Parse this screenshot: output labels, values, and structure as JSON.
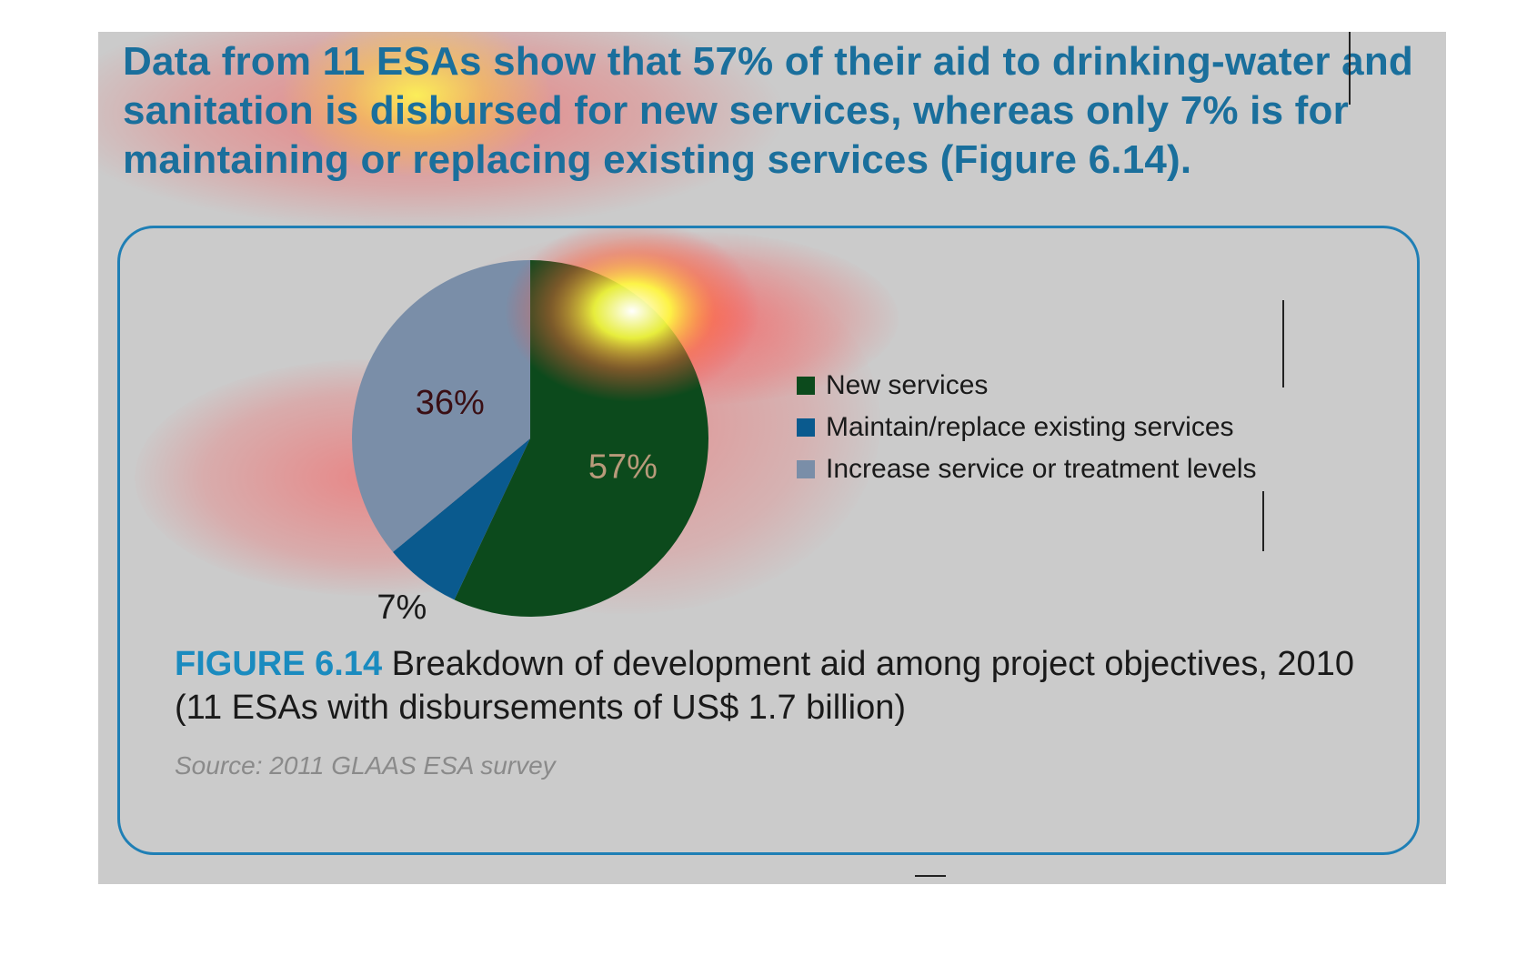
{
  "headline": "Data from 11 ESAs show that 57% of their aid to drinking-water and sanitation is disbursed for new services, whereas only 7% is for maintaining or replacing existing services (Figure 6.14).",
  "figure": {
    "number": "FIGURE 6.14",
    "caption": "Breakdown of development aid among project objectives, 2010 (11 ESAs with disbursements of US$ 1.7 billion)",
    "source": "Source: 2011 GLAAS ESA survey"
  },
  "chart_data": {
    "type": "pie",
    "title": "",
    "slices": [
      {
        "label": "New services",
        "value": 57,
        "display": "57%",
        "color": "#0c4a1c",
        "label_color": "#b89a7a"
      },
      {
        "label": "Maintain/replace existing services",
        "value": 7,
        "display": "7%",
        "color": "#0a5a8e",
        "label_color": "#1a1a1a"
      },
      {
        "label": "Increase service or treatment levels",
        "value": 36,
        "display": "36%",
        "color": "#7a8ea8",
        "label_color": "#3a0f14"
      }
    ],
    "start": "12 o'clock, clockwise",
    "legend_position": "right"
  }
}
